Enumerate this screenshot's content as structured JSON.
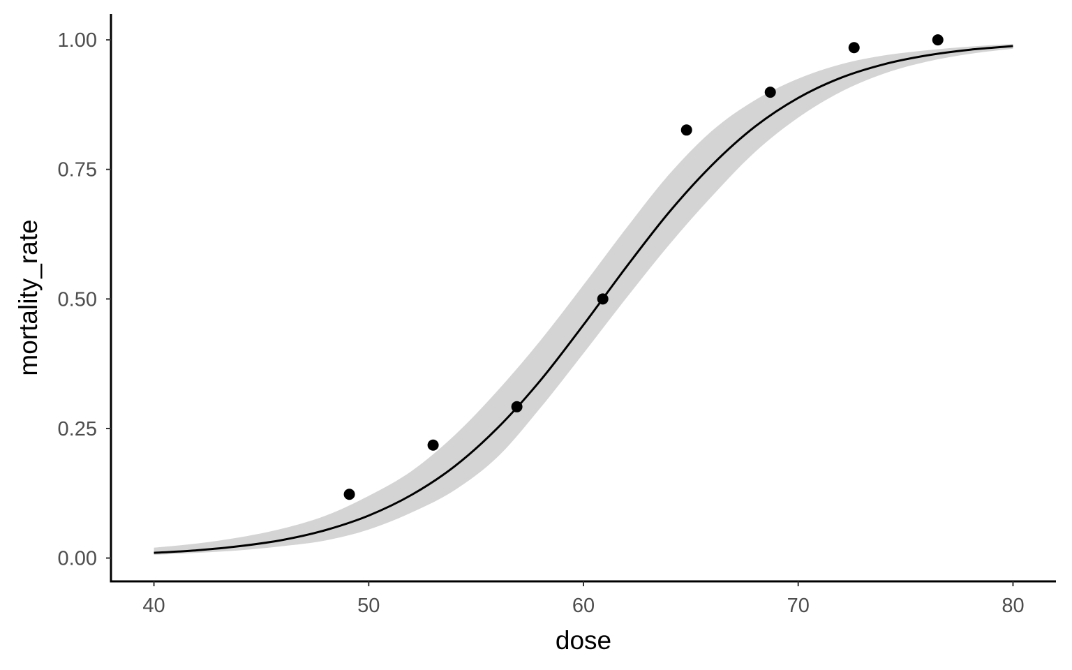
{
  "chart_data": {
    "type": "scatter",
    "title": "",
    "xlabel": "dose",
    "ylabel": "mortality_rate",
    "xlim": [
      38,
      82
    ],
    "ylim": [
      -0.045,
      1.05
    ],
    "x_ticks": [
      40,
      50,
      60,
      70,
      80
    ],
    "x_tick_labels": [
      "40",
      "50",
      "60",
      "70",
      "80"
    ],
    "y_ticks": [
      0,
      0.25,
      0.5,
      0.75,
      1.0
    ],
    "y_tick_labels": [
      "0.00",
      "0.25",
      "0.50",
      "0.75",
      "1.00"
    ],
    "grid": false,
    "legend": "none",
    "points": {
      "x": [
        49.1,
        53.0,
        56.9,
        60.9,
        64.8,
        68.7,
        72.6,
        76.5
      ],
      "y": [
        0.123,
        0.218,
        0.292,
        0.5,
        0.826,
        0.899,
        0.985,
        1.0
      ]
    },
    "fit_curve": {
      "x": [
        40,
        42,
        44,
        46,
        48,
        50,
        52,
        54,
        56,
        58,
        60,
        62,
        64,
        66,
        68,
        70,
        72,
        74,
        76,
        78,
        80
      ],
      "y": [
        0.01,
        0.015,
        0.023,
        0.035,
        0.054,
        0.082,
        0.122,
        0.177,
        0.251,
        0.343,
        0.45,
        0.562,
        0.668,
        0.759,
        0.833,
        0.888,
        0.927,
        0.953,
        0.97,
        0.981,
        0.988
      ]
    },
    "confidence_band": {
      "x": [
        40,
        42,
        44,
        46,
        48,
        50,
        52,
        54,
        56,
        58,
        60,
        62,
        64,
        66,
        68,
        70,
        72,
        74,
        76,
        78,
        80
      ],
      "lower": [
        0.006,
        0.01,
        0.015,
        0.023,
        0.034,
        0.055,
        0.088,
        0.131,
        0.195,
        0.29,
        0.395,
        0.502,
        0.605,
        0.699,
        0.784,
        0.85,
        0.9,
        0.935,
        0.958,
        0.973,
        0.983
      ],
      "upper": [
        0.02,
        0.028,
        0.04,
        0.057,
        0.082,
        0.12,
        0.168,
        0.237,
        0.323,
        0.42,
        0.527,
        0.637,
        0.741,
        0.825,
        0.884,
        0.925,
        0.953,
        0.97,
        0.98,
        0.987,
        0.992
      ]
    },
    "colors": {
      "points": "#000000",
      "line": "#000000",
      "band": "#d4d4d4"
    }
  }
}
